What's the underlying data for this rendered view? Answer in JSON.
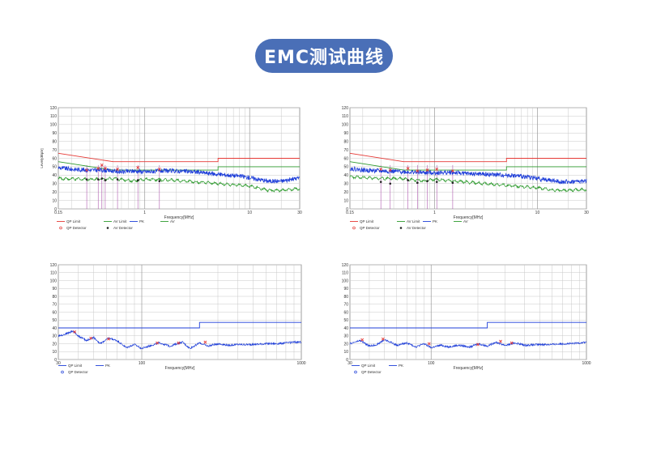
{
  "page": {
    "title": "EMC测试曲线"
  },
  "chart_data": [
    {
      "type": "line",
      "xscale": "log",
      "xlim": [
        0.15,
        30
      ],
      "ylim": [
        0,
        120
      ],
      "yticks": [
        0,
        10,
        20,
        30,
        40,
        50,
        60,
        70,
        80,
        90,
        100,
        110,
        120
      ],
      "xticklabels": [
        {
          "v": 0.15,
          "t": "0.15"
        },
        {
          "v": 1,
          "t": "1"
        },
        {
          "v": 10,
          "t": "10"
        },
        {
          "v": 30,
          "t": "30"
        }
      ],
      "xlabel": "Frequency[MHz]",
      "ylabel": "Level[dBµV]",
      "grid": true,
      "markers_v": [
        0.28,
        0.36,
        0.39,
        0.42,
        0.55,
        0.86,
        1.38
      ],
      "series": [
        {
          "name": "QP Limit",
          "color": "#e53935",
          "x": [
            0.15,
            0.5,
            0.5,
            5,
            5,
            30
          ],
          "y": [
            66,
            56,
            56,
            56,
            60,
            60
          ]
        },
        {
          "name": "AV Limit",
          "color": "#2e9b2e",
          "x": [
            0.15,
            0.5,
            0.5,
            5,
            5,
            30
          ],
          "y": [
            56,
            46,
            46,
            46,
            50,
            50
          ]
        },
        {
          "name": "PK",
          "color": "#1f3fd9",
          "noise": "pk",
          "x": [
            0.15,
            0.2,
            0.3,
            0.4,
            0.6,
            0.8,
            1,
            1.5,
            2,
            3,
            5,
            8,
            10,
            15,
            20,
            25,
            30
          ],
          "y": [
            49,
            47,
            46,
            46,
            44,
            45,
            44,
            45,
            45,
            44,
            41,
            39,
            37,
            33,
            33,
            35,
            37
          ]
        },
        {
          "name": "AV",
          "color": "#2e9b2e",
          "noise": "av",
          "x": [
            0.15,
            0.3,
            0.5,
            0.8,
            1,
            2,
            3,
            5,
            8,
            10,
            15,
            20,
            30
          ],
          "y": [
            36,
            35,
            36,
            33,
            35,
            34,
            32,
            30,
            28,
            27,
            22,
            22,
            24
          ]
        }
      ],
      "qp_detector": {
        "x": [
          0.28,
          0.36,
          0.39,
          0.42,
          0.55,
          0.86,
          1.38
        ],
        "y": [
          46,
          48,
          52,
          48,
          47,
          49,
          47
        ]
      },
      "av_detector": {
        "x": [
          0.28,
          0.36,
          0.39,
          0.42,
          0.55,
          0.86,
          1.38
        ],
        "y": [
          35,
          35,
          36,
          34,
          35,
          34,
          33
        ]
      }
    },
    {
      "type": "line",
      "xscale": "log",
      "xlim": [
        0.15,
        30
      ],
      "ylim": [
        0,
        120
      ],
      "yticks": [
        0,
        10,
        20,
        30,
        40,
        50,
        60,
        70,
        80,
        90,
        100,
        110,
        120
      ],
      "xticklabels": [
        {
          "v": 0.15,
          "t": "0.15"
        },
        {
          "v": 1,
          "t": "1"
        },
        {
          "v": 10,
          "t": "10"
        },
        {
          "v": 30,
          "t": "30"
        }
      ],
      "xlabel": "Frequency[MHz]",
      "ylabel": "",
      "grid": true,
      "markers_v": [
        0.3,
        0.37,
        0.55,
        0.68,
        0.85,
        1.05,
        1.5
      ],
      "series": [
        {
          "name": "QP Limit",
          "color": "#e53935",
          "x": [
            0.15,
            0.5,
            0.5,
            5,
            5,
            30
          ],
          "y": [
            66,
            56,
            56,
            56,
            60,
            60
          ]
        },
        {
          "name": "AV Limit",
          "color": "#2e9b2e",
          "x": [
            0.15,
            0.5,
            0.5,
            5,
            5,
            30
          ],
          "y": [
            56,
            46,
            46,
            46,
            50,
            50
          ]
        },
        {
          "name": "PK",
          "color": "#1f3fd9",
          "noise": "pk",
          "x": [
            0.15,
            0.2,
            0.3,
            0.5,
            0.8,
            1,
            1.5,
            2,
            3,
            5,
            8,
            10,
            15,
            20,
            30
          ],
          "y": [
            48,
            46,
            45,
            44,
            43,
            43,
            43,
            42,
            41,
            40,
            38,
            36,
            33,
            32,
            33
          ]
        },
        {
          "name": "AV",
          "color": "#2e9b2e",
          "noise": "av",
          "x": [
            0.15,
            0.3,
            0.5,
            0.8,
            1,
            2,
            3,
            5,
            8,
            10,
            15,
            20,
            30
          ],
          "y": [
            38,
            36,
            36,
            33,
            35,
            32,
            30,
            28,
            26,
            25,
            22,
            22,
            23
          ]
        }
      ],
      "qp_detector": {
        "x": [
          0.3,
          0.37,
          0.55,
          0.68,
          0.85,
          1.05,
          1.5
        ],
        "y": [
          47,
          46,
          48,
          45,
          46,
          47,
          45
        ]
      },
      "av_detector": {
        "x": [
          0.3,
          0.37,
          0.55,
          0.68,
          0.85,
          1.05,
          1.5
        ],
        "y": [
          32,
          30,
          34,
          31,
          33,
          32,
          31
        ]
      }
    },
    {
      "type": "line",
      "xscale": "log",
      "xlim": [
        30,
        1000
      ],
      "ylim": [
        0,
        120
      ],
      "yticks": [
        0,
        10,
        20,
        30,
        40,
        50,
        60,
        70,
        80,
        90,
        100,
        110,
        120
      ],
      "xticklabels": [
        {
          "v": 30,
          "t": "30"
        },
        {
          "v": 100,
          "t": "100"
        },
        {
          "v": 1000,
          "t": "1000"
        }
      ],
      "xlabel": "Frequency[MHz]",
      "ylabel": "",
      "grid": true,
      "markers_v": [],
      "series": [
        {
          "name": "QP Limit",
          "color": "#1f3fd9",
          "x": [
            30,
            230,
            230,
            1000
          ],
          "y": [
            40,
            40,
            47,
            47
          ]
        },
        {
          "name": "PK",
          "color": "#1f3fd9",
          "noise": "rad",
          "x": [
            30,
            33,
            37,
            40,
            45,
            50,
            55,
            62,
            70,
            80,
            90,
            100,
            115,
            130,
            150,
            180,
            200,
            230,
            260,
            300,
            350,
            400,
            500,
            600,
            700,
            800,
            900,
            1000
          ],
          "y": [
            30,
            32,
            36,
            30,
            24,
            28,
            20,
            27,
            24,
            15,
            19,
            14,
            18,
            21,
            17,
            22,
            14,
            21,
            17,
            20,
            18,
            19,
            19,
            20,
            20,
            21,
            22,
            22
          ]
        }
      ],
      "qp_detector": {
        "x": [
          38,
          48,
          62,
          125,
          170,
          250
        ],
        "y": [
          35,
          27,
          26,
          21,
          21,
          22
        ]
      },
      "av_detector": {
        "x": [],
        "y": []
      }
    },
    {
      "type": "line",
      "xscale": "log",
      "xlim": [
        30,
        1000
      ],
      "ylim": [
        0,
        120
      ],
      "yticks": [
        0,
        10,
        20,
        30,
        40,
        50,
        60,
        70,
        80,
        90,
        100,
        110,
        120
      ],
      "xticklabels": [
        {
          "v": 30,
          "t": "30"
        },
        {
          "v": 100,
          "t": "100"
        },
        {
          "v": 1000,
          "t": "1000"
        }
      ],
      "xlabel": "Frequency[MHz]",
      "ylabel": "",
      "grid": true,
      "markers_v": [],
      "series": [
        {
          "name": "QP Limit",
          "color": "#1f3fd9",
          "x": [
            30,
            230,
            230,
            1000
          ],
          "y": [
            40,
            40,
            47,
            47
          ]
        },
        {
          "name": "PK",
          "color": "#1f3fd9",
          "noise": "rad",
          "x": [
            30,
            35,
            40,
            45,
            50,
            55,
            60,
            70,
            80,
            90,
            100,
            115,
            130,
            150,
            180,
            200,
            230,
            260,
            300,
            350,
            400,
            500,
            600,
            700,
            800,
            900,
            1000
          ],
          "y": [
            20,
            24,
            17,
            19,
            25,
            22,
            18,
            21,
            16,
            20,
            15,
            18,
            16,
            18,
            16,
            20,
            17,
            22,
            18,
            21,
            18,
            19,
            19,
            20,
            20,
            21,
            22
          ]
        }
      ],
      "qp_detector": {
        "x": [
          36,
          49,
          97,
          200,
          280,
          330
        ],
        "y": [
          25,
          26,
          20,
          19,
          23,
          21
        ]
      },
      "av_detector": {
        "x": [],
        "y": []
      }
    }
  ],
  "legends": [
    {
      "row1": [
        {
          "label": "QP Limit",
          "color": "#e53935",
          "kind": "line"
        },
        {
          "label": "AV Limit",
          "color": "#2e9b2e",
          "kind": "line"
        },
        {
          "label": "PK",
          "color": "#1f3fd9",
          "kind": "line"
        },
        {
          "label": "AV",
          "color": "#2e9b2e",
          "kind": "line"
        }
      ],
      "row2": [
        {
          "label": "QP Detector",
          "color": "#e53935",
          "kind": "o"
        },
        {
          "label": "AV Detector",
          "color": "#222222",
          "kind": "dot"
        }
      ]
    },
    {
      "row1": [
        {
          "label": "QP Limit",
          "color": "#e53935",
          "kind": "line"
        },
        {
          "label": "AV Limit",
          "color": "#2e9b2e",
          "kind": "line"
        },
        {
          "label": "PK",
          "color": "#1f3fd9",
          "kind": "line"
        },
        {
          "label": "AV",
          "color": "#2e9b2e",
          "kind": "line"
        }
      ],
      "row2": [
        {
          "label": "QP Detector",
          "color": "#e53935",
          "kind": "o"
        },
        {
          "label": "AV Detector",
          "color": "#222222",
          "kind": "dot"
        }
      ]
    },
    {
      "row1": [
        {
          "label": "QP Limit",
          "color": "#1f3fd9",
          "kind": "line"
        },
        {
          "label": "PK",
          "color": "#1f3fd9",
          "kind": "line"
        }
      ],
      "row2": [
        {
          "label": "QP Detector",
          "color": "#1f3fd9",
          "kind": "o"
        }
      ]
    },
    {
      "row1": [
        {
          "label": "QP Limit",
          "color": "#1f3fd9",
          "kind": "line"
        },
        {
          "label": "PK",
          "color": "#1f3fd9",
          "kind": "line"
        }
      ],
      "row2": [
        {
          "label": "QP Detector",
          "color": "#1f3fd9",
          "kind": "o"
        }
      ]
    }
  ]
}
